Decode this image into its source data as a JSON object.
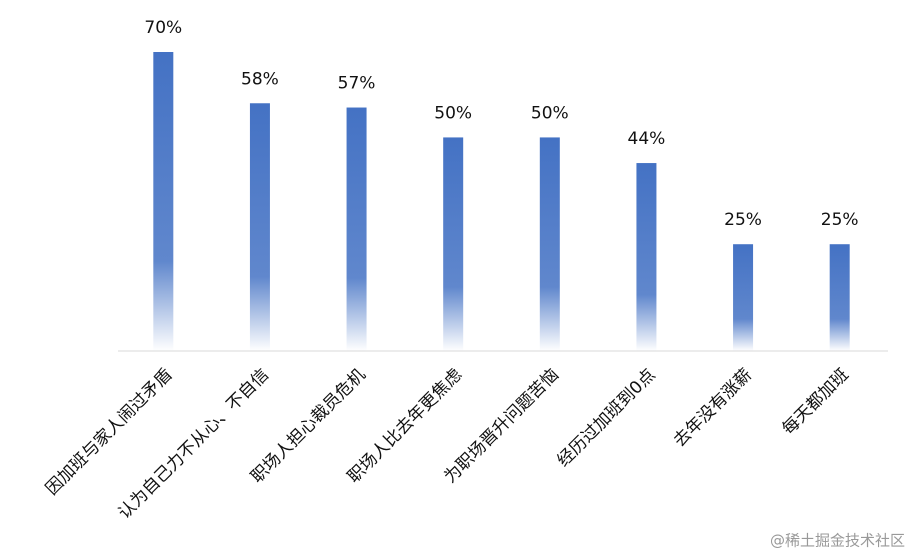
{
  "chart_data": {
    "type": "bar",
    "categories": [
      "因加班与家人闹过矛盾",
      "认为自己力不从心、不自信",
      "职场人担心裁员危机",
      "职场人比去年更焦虑",
      "为职场晋升问题苦恼",
      "经历过加班到0点",
      "去年没有涨薪",
      "每天都加班"
    ],
    "values": [
      70,
      58,
      57,
      50,
      50,
      44,
      25,
      25
    ],
    "value_labels": [
      "70%",
      "58%",
      "57%",
      "50%",
      "50%",
      "44%",
      "25%",
      "25%"
    ],
    "color": "#4472c4",
    "watermark": "@稀土掘金技术社区"
  }
}
